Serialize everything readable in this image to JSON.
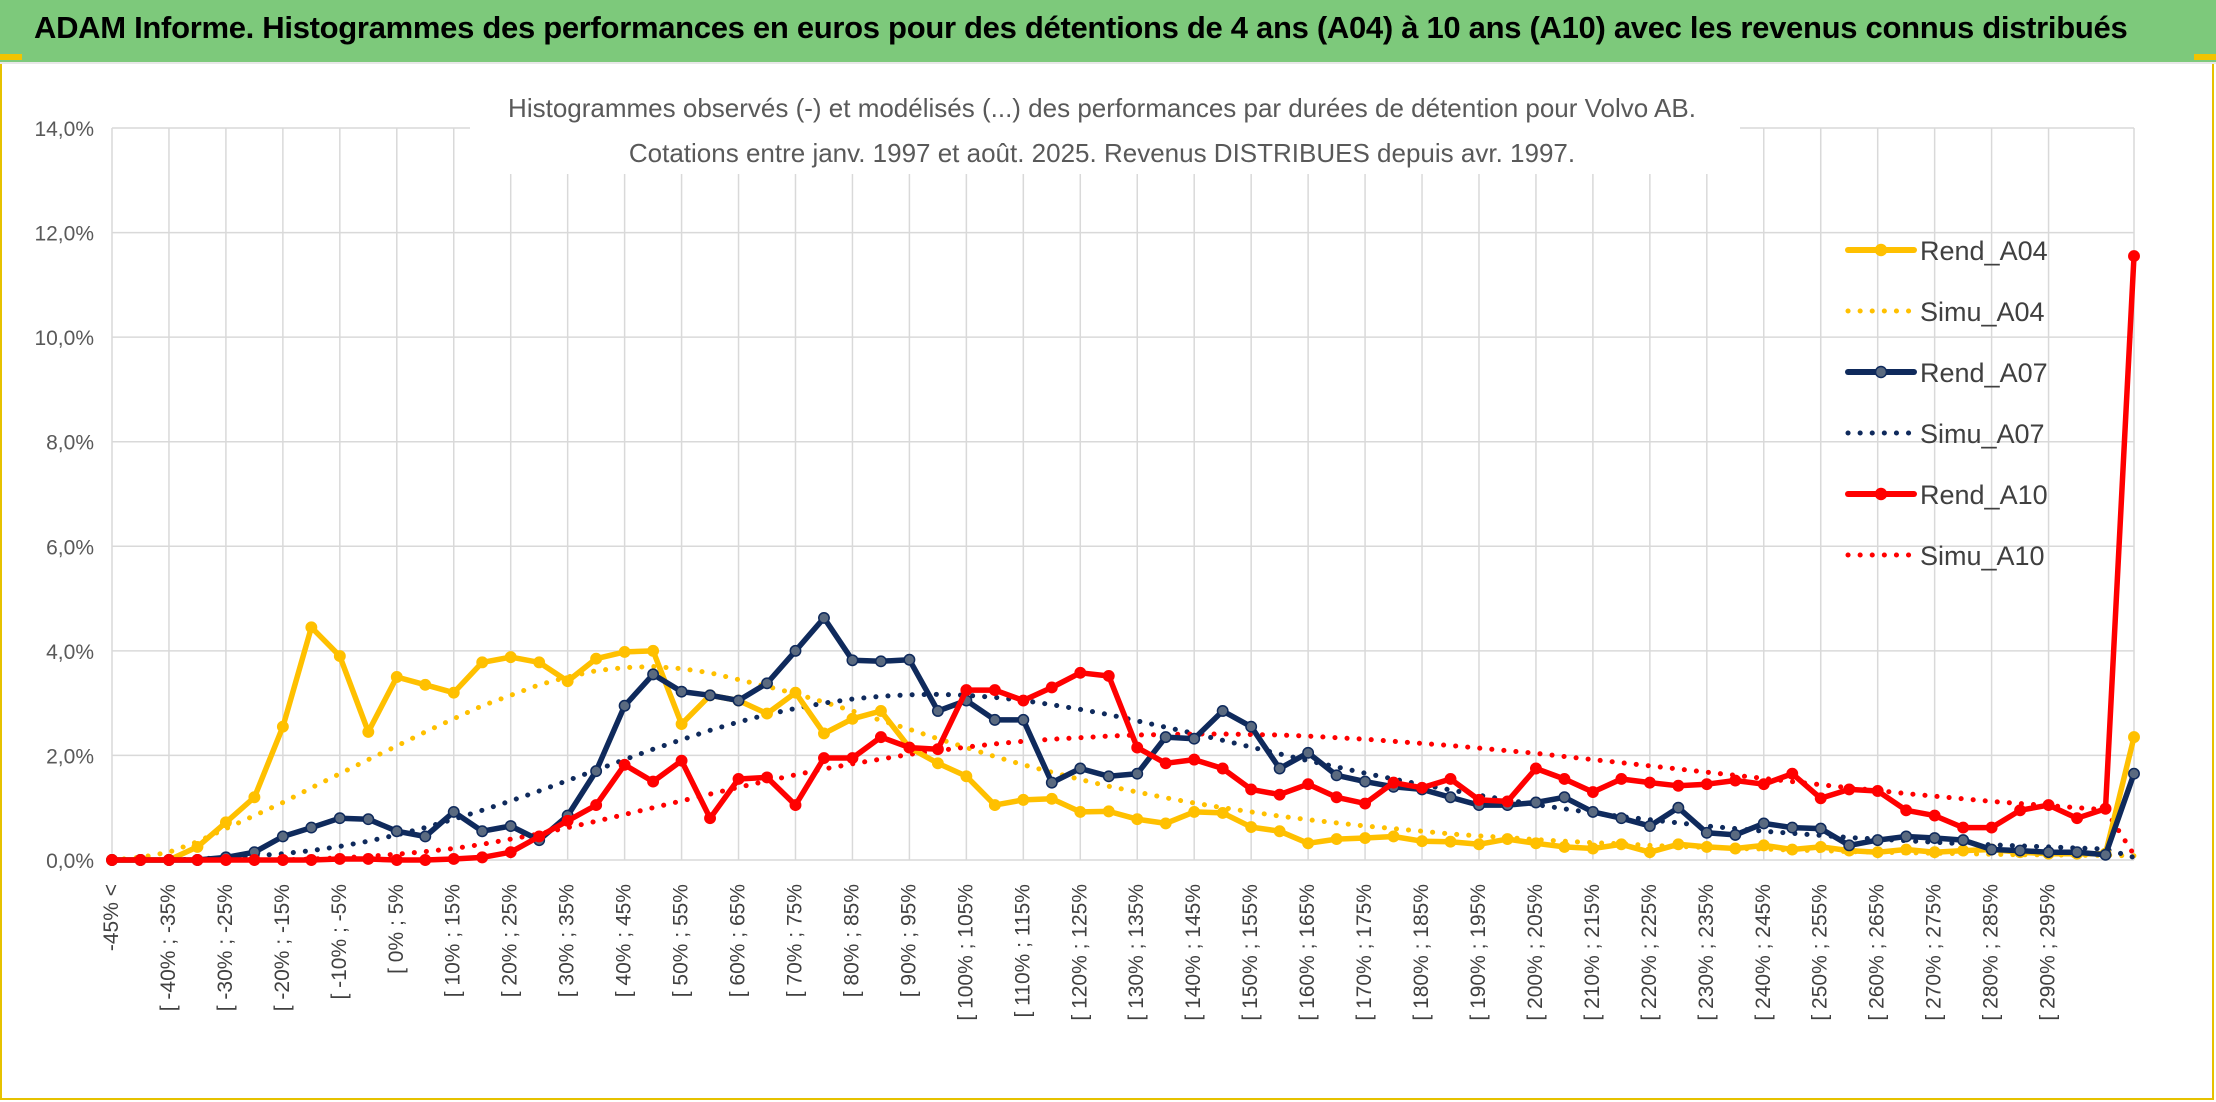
{
  "banner": {
    "title": "ADAM Informe. Histogrammes des performances en euros pour des détentions de 4 ans (A04) à 10 ans (A10) avec les revenus connus distribués"
  },
  "colors": {
    "banner_bg": "#7dc97b",
    "a04": "#ffc000",
    "a07": "#0f2a5c",
    "a07_marker": "#5a6a80",
    "a10": "#ff0000",
    "grid": "#d9d9d9",
    "frame_accent": "#e6c200"
  },
  "chart_data": {
    "type": "line",
    "title": "Histogrammes observés (-) et modélisés (...) des performances par durées de détention pour Volvo AB.",
    "subtitle": "Cotations entre janv. 1997 et août. 2025. Revenus DISTRIBUES depuis avr. 1997.",
    "ylim": [
      0,
      14
    ],
    "yticks": [
      "0,0%",
      "2,0%",
      "4,0%",
      "6,0%",
      "8,0%",
      "10,0%",
      "12,0%",
      "14,0%"
    ],
    "grid": true,
    "legend_position": "right",
    "x_labels": [
      "-45% <",
      "[ -40% ; -35%",
      "[ -30% ; -25%",
      "[ -20% ; -15%",
      "[ -10% ; -5%",
      "[ 0% ; 5%",
      "[ 10% ; 15%",
      "[ 20% ; 25%",
      "[ 30% ; 35%",
      "[ 40% ; 45%",
      "[ 50% ; 55%",
      "[ 60% ; 65%",
      "[ 70% ; 75%",
      "[ 80% ; 85%",
      "[ 90% ; 95%",
      "[ 100% ; 105%",
      "[ 110% ; 115%",
      "[ 120% ; 125%",
      "[ 130% ; 135%",
      "[ 140% ; 145%",
      "[ 150% ; 155%",
      "[ 160% ; 165%",
      "[ 170% ; 175%",
      "[ 180% ; 185%",
      "[ 190% ; 195%",
      "[ 200% ; 205%",
      "[ 210% ; 215%",
      "[ 220% ; 225%",
      "[ 230% ; 235%",
      "[ 240% ; 245%",
      "[ 250% ; 255%",
      "[ 260% ; 265%",
      "[ 270% ; 275%",
      "[ 280% ; 285%",
      "[ 290% ; 295%"
    ],
    "series": [
      {
        "name": "Rend_A04",
        "style": "solid",
        "color": "#ffc000",
        "markers": true,
        "values": [
          0.0,
          0.0,
          0.0,
          0.25,
          0.72,
          1.2,
          2.55,
          4.45,
          3.9,
          2.45,
          3.5,
          3.35,
          3.2,
          3.78,
          3.88,
          3.78,
          3.42,
          3.85,
          3.98,
          4.0,
          2.6,
          3.15,
          3.05,
          2.8,
          3.2,
          2.42,
          2.7,
          2.85,
          2.15,
          1.85,
          1.6,
          1.05,
          1.15,
          1.17,
          0.92,
          0.93,
          0.78,
          0.7,
          0.92,
          0.9,
          0.63,
          0.55,
          0.32,
          0.4,
          0.42,
          0.45,
          0.36,
          0.35,
          0.3,
          0.4,
          0.32,
          0.25,
          0.22,
          0.3,
          0.15,
          0.3,
          0.25,
          0.22,
          0.28,
          0.2,
          0.25,
          0.18,
          0.15,
          0.2,
          0.15,
          0.18,
          0.2,
          0.15,
          0.12,
          0.12,
          0.12,
          2.35
        ]
      },
      {
        "name": "Simu_A04",
        "style": "dotted",
        "color": "#ffc000",
        "markers": false,
        "values": [
          0.0,
          0.05,
          0.15,
          0.35,
          0.6,
          0.85,
          1.1,
          1.38,
          1.65,
          1.92,
          2.18,
          2.45,
          2.7,
          2.95,
          3.15,
          3.35,
          3.5,
          3.62,
          3.68,
          3.7,
          3.66,
          3.58,
          3.45,
          3.32,
          3.18,
          3.02,
          2.85,
          2.67,
          2.5,
          2.32,
          2.15,
          1.98,
          1.82,
          1.68,
          1.54,
          1.41,
          1.3,
          1.19,
          1.09,
          1.0,
          0.92,
          0.84,
          0.77,
          0.71,
          0.65,
          0.6,
          0.55,
          0.5,
          0.46,
          0.43,
          0.39,
          0.36,
          0.33,
          0.31,
          0.28,
          0.26,
          0.24,
          0.22,
          0.21,
          0.19,
          0.18,
          0.16,
          0.15,
          0.14,
          0.13,
          0.12,
          0.11,
          0.1,
          0.1,
          0.09,
          0.09,
          0.08
        ]
      },
      {
        "name": "Rend_A07",
        "style": "solid",
        "color": "#0f2a5c",
        "markers": true,
        "values": [
          0.0,
          0.0,
          0.0,
          0.0,
          0.05,
          0.15,
          0.45,
          0.62,
          0.8,
          0.78,
          0.55,
          0.45,
          0.92,
          0.55,
          0.65,
          0.38,
          0.85,
          1.7,
          2.95,
          3.55,
          3.22,
          3.15,
          3.05,
          3.38,
          4.0,
          4.63,
          3.82,
          3.8,
          3.83,
          2.85,
          3.05,
          2.68,
          2.68,
          1.48,
          1.75,
          1.6,
          1.65,
          2.35,
          2.32,
          2.85,
          2.55,
          1.75,
          2.05,
          1.62,
          1.5,
          1.4,
          1.35,
          1.2,
          1.05,
          1.05,
          1.1,
          1.2,
          0.92,
          0.8,
          0.65,
          1.0,
          0.52,
          0.48,
          0.7,
          0.62,
          0.6,
          0.28,
          0.38,
          0.45,
          0.42,
          0.38,
          0.2,
          0.18,
          0.15,
          0.15,
          0.1,
          1.65
        ]
      },
      {
        "name": "Simu_A07",
        "style": "dotted",
        "color": "#0f2a5c",
        "markers": false,
        "values": [
          0.0,
          0.0,
          0.0,
          0.02,
          0.05,
          0.08,
          0.12,
          0.18,
          0.26,
          0.36,
          0.48,
          0.62,
          0.78,
          0.95,
          1.13,
          1.32,
          1.52,
          1.72,
          1.92,
          2.12,
          2.3,
          2.48,
          2.64,
          2.78,
          2.9,
          3.0,
          3.08,
          3.13,
          3.16,
          3.17,
          3.15,
          3.11,
          3.05,
          2.97,
          2.88,
          2.78,
          2.66,
          2.54,
          2.42,
          2.29,
          2.16,
          2.03,
          1.9,
          1.78,
          1.66,
          1.55,
          1.44,
          1.34,
          1.24,
          1.15,
          1.06,
          0.98,
          0.9,
          0.83,
          0.77,
          0.71,
          0.65,
          0.6,
          0.55,
          0.51,
          0.47,
          0.43,
          0.4,
          0.37,
          0.34,
          0.31,
          0.29,
          0.27,
          0.25,
          0.23,
          0.21,
          0.05
        ]
      },
      {
        "name": "Rend_A10",
        "style": "solid",
        "color": "#ff0000",
        "markers": true,
        "values": [
          0.0,
          0.0,
          0.0,
          0.0,
          0.0,
          0.0,
          0.0,
          0.0,
          0.02,
          0.02,
          0.0,
          0.0,
          0.02,
          0.05,
          0.15,
          0.45,
          0.75,
          1.05,
          1.82,
          1.5,
          1.9,
          0.8,
          1.55,
          1.58,
          1.05,
          1.95,
          1.95,
          2.35,
          2.15,
          2.12,
          3.25,
          3.25,
          3.05,
          3.3,
          3.58,
          3.52,
          2.15,
          1.85,
          1.92,
          1.75,
          1.35,
          1.25,
          1.45,
          1.2,
          1.08,
          1.48,
          1.38,
          1.55,
          1.15,
          1.12,
          1.75,
          1.55,
          1.3,
          1.55,
          1.48,
          1.42,
          1.45,
          1.52,
          1.45,
          1.65,
          1.18,
          1.35,
          1.32,
          0.95,
          0.85,
          0.62,
          0.62,
          0.95,
          1.05,
          0.8,
          0.98,
          11.55
        ]
      },
      {
        "name": "Simu_A10",
        "style": "dotted",
        "color": "#ff0000",
        "markers": false,
        "values": [
          0.0,
          0.0,
          0.0,
          0.0,
          0.0,
          0.0,
          0.0,
          0.02,
          0.04,
          0.07,
          0.11,
          0.16,
          0.22,
          0.3,
          0.4,
          0.5,
          0.62,
          0.74,
          0.87,
          1.0,
          1.13,
          1.26,
          1.39,
          1.51,
          1.63,
          1.74,
          1.84,
          1.93,
          2.02,
          2.09,
          2.16,
          2.22,
          2.27,
          2.31,
          2.34,
          2.37,
          2.39,
          2.4,
          2.41,
          2.41,
          2.4,
          2.39,
          2.37,
          2.34,
          2.31,
          2.27,
          2.23,
          2.19,
          2.14,
          2.09,
          2.04,
          1.98,
          1.92,
          1.86,
          1.8,
          1.74,
          1.68,
          1.62,
          1.56,
          1.5,
          1.44,
          1.38,
          1.33,
          1.27,
          1.22,
          1.17,
          1.12,
          1.08,
          1.04,
          1.0,
          0.96,
          0.1
        ]
      }
    ]
  }
}
